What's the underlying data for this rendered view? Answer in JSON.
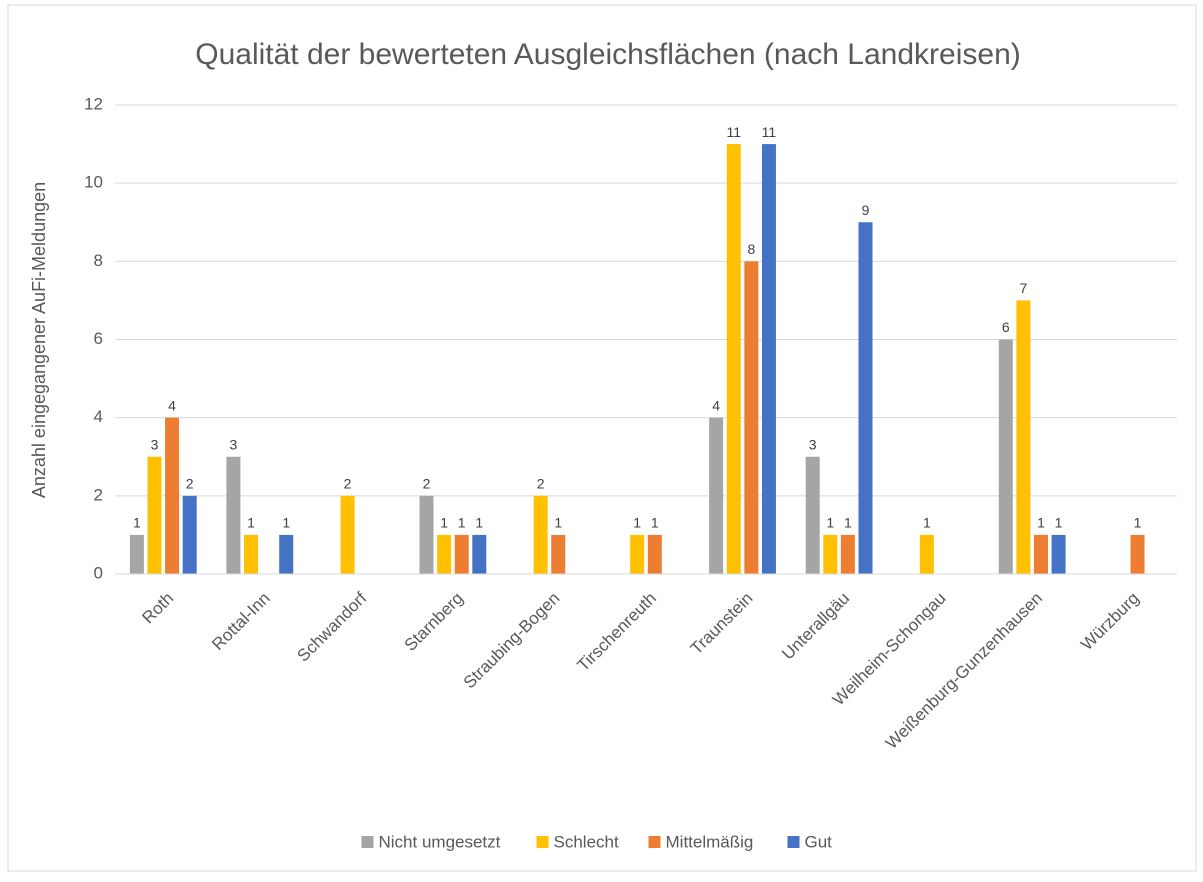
{
  "chart_data": {
    "type": "bar",
    "title": "Qualität der bewerteten Ausgleichsflächen (nach Landkreisen)",
    "y_label": "Anzahl eingegangener AuFi-Meldungen",
    "categories": [
      "Roth",
      "Rottal-Inn",
      "Schwandorf",
      "Starnberg",
      "Straubing-Bogen",
      "Tirschenreuth",
      "Traunstein",
      "Unterallgäu",
      "Weilheim-Schongau",
      "Weißenburg-Gunzenhausen",
      "Würzburg"
    ],
    "series": [
      {
        "name": "Nicht umgesetzt",
        "color": "#a5a5a5",
        "values": [
          1,
          3,
          null,
          2,
          null,
          null,
          4,
          3,
          null,
          6,
          null
        ]
      },
      {
        "name": "Schlecht",
        "color": "#ffc000",
        "values": [
          3,
          1,
          2,
          1,
          2,
          1,
          11,
          1,
          1,
          7,
          null
        ]
      },
      {
        "name": "Mittelmäßig",
        "color": "#ed7d31",
        "values": [
          4,
          null,
          null,
          1,
          1,
          1,
          8,
          1,
          null,
          1,
          1
        ]
      },
      {
        "name": "Gut",
        "color": "#4472c4",
        "values": [
          2,
          1,
          null,
          1,
          null,
          null,
          11,
          9,
          null,
          1,
          null
        ]
      }
    ],
    "ylim": [
      0,
      12
    ],
    "yticks": [
      0,
      2,
      4,
      6,
      8,
      10,
      12
    ],
    "grid": true,
    "legend": "bottom"
  }
}
